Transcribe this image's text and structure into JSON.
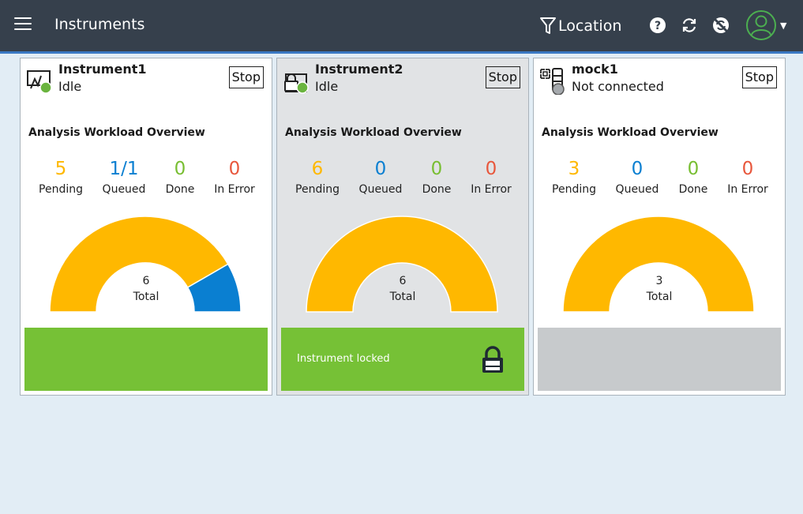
{
  "header": {
    "title": "Instruments",
    "location_label": "Location",
    "icons": [
      "menu-icon",
      "filter-icon",
      "help-icon",
      "refresh-icon",
      "sync-off-icon",
      "user-avatar-icon"
    ]
  },
  "colors": {
    "header_bg": "#36404c",
    "pending": "#ffb800",
    "queued": "#0a7fd1",
    "done": "#78be32",
    "error": "#e8573c",
    "footer_ok": "#76c136",
    "footer_disconnected": "#c7cacc"
  },
  "stat_labels": {
    "pending": "Pending",
    "queued": "Queued",
    "done": "Done",
    "error": "In Error"
  },
  "instruments": [
    {
      "name": "Instrument1",
      "status": "Idle",
      "status_color": "#6ab43e",
      "icon": "instrument-screen-icon",
      "stop_label": "Stop",
      "overview_title": "Analysis Workload Overview",
      "pending": "5",
      "queued": "1/1",
      "done": "0",
      "error": "0",
      "total": "6",
      "total_label": "Total",
      "gauge_segments": [
        {
          "name": "Pending",
          "value": 5,
          "color": "#ffb800"
        },
        {
          "name": "Queued",
          "value": 1,
          "color": "#0a7fd1"
        }
      ],
      "footer_text": "",
      "footer_color": "#76c136",
      "locked": false
    },
    {
      "name": "Instrument2",
      "status": "Idle",
      "status_color": "#6ab43e",
      "icon": "instrument-locked-icon",
      "stop_label": "Stop",
      "overview_title": "Analysis Workload Overview",
      "pending": "6",
      "queued": "0",
      "done": "0",
      "error": "0",
      "total": "6",
      "total_label": "Total",
      "gauge_segments": [
        {
          "name": "Pending",
          "value": 6,
          "color": "#ffb800"
        }
      ],
      "footer_text": "Instrument locked",
      "footer_color": "#76c136",
      "locked": true
    },
    {
      "name": "mock1",
      "status": "Not connected",
      "status_color": "#a5a9ad",
      "icon": "instrument-tower-icon",
      "stop_label": "Stop",
      "overview_title": "Analysis Workload Overview",
      "pending": "3",
      "queued": "0",
      "done": "0",
      "error": "0",
      "total": "3",
      "total_label": "Total",
      "gauge_segments": [
        {
          "name": "Pending",
          "value": 3,
          "color": "#ffb800"
        }
      ],
      "footer_text": "",
      "footer_color": "#c7cacc",
      "locked": false
    }
  ]
}
